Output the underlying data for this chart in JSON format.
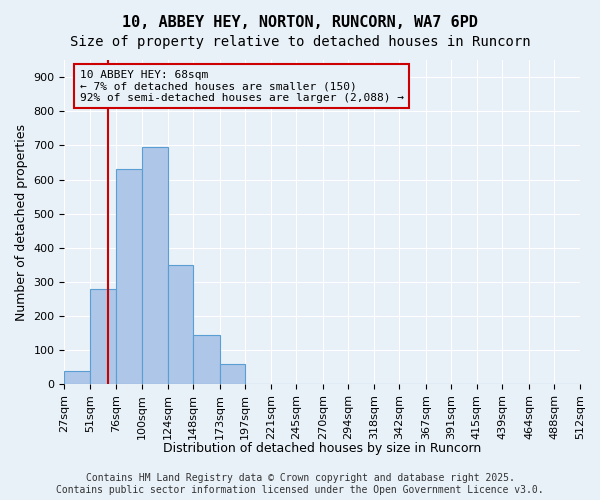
{
  "title_line1": "10, ABBEY HEY, NORTON, RUNCORN, WA7 6PD",
  "title_line2": "Size of property relative to detached houses in Runcorn",
  "xlabel": "Distribution of detached houses by size in Runcorn",
  "ylabel": "Number of detached properties",
  "bin_edges": [
    27,
    51,
    76,
    100,
    124,
    148,
    173,
    197,
    221,
    245,
    270,
    294,
    318,
    342,
    367,
    391,
    415,
    439,
    464,
    488,
    512
  ],
  "bar_heights": [
    40,
    280,
    630,
    695,
    350,
    145,
    60,
    0,
    0,
    0,
    0,
    0,
    0,
    0,
    0,
    0,
    0,
    0,
    0,
    0
  ],
  "bar_color": "#aec6e8",
  "bar_edge_color": "#5a9fd4",
  "bg_color": "#e8f0f8",
  "grid_color": "#ffffff",
  "vline_x": 68,
  "vline_color": "#cc0000",
  "ylim": [
    0,
    950
  ],
  "yticks": [
    0,
    100,
    200,
    300,
    400,
    500,
    600,
    700,
    800,
    900
  ],
  "annotation_text": "10 ABBEY HEY: 68sqm\n← 7% of detached houses are smaller (150)\n92% of semi-detached houses are larger (2,088) →",
  "annotation_box_color": "#cc0000",
  "footnote": "Contains HM Land Registry data © Crown copyright and database right 2025.\nContains public sector information licensed under the Open Government Licence v3.0.",
  "title_fontsize": 11,
  "subtitle_fontsize": 10,
  "xlabel_fontsize": 9,
  "ylabel_fontsize": 9,
  "tick_fontsize": 8,
  "annotation_fontsize": 8,
  "footnote_fontsize": 7
}
